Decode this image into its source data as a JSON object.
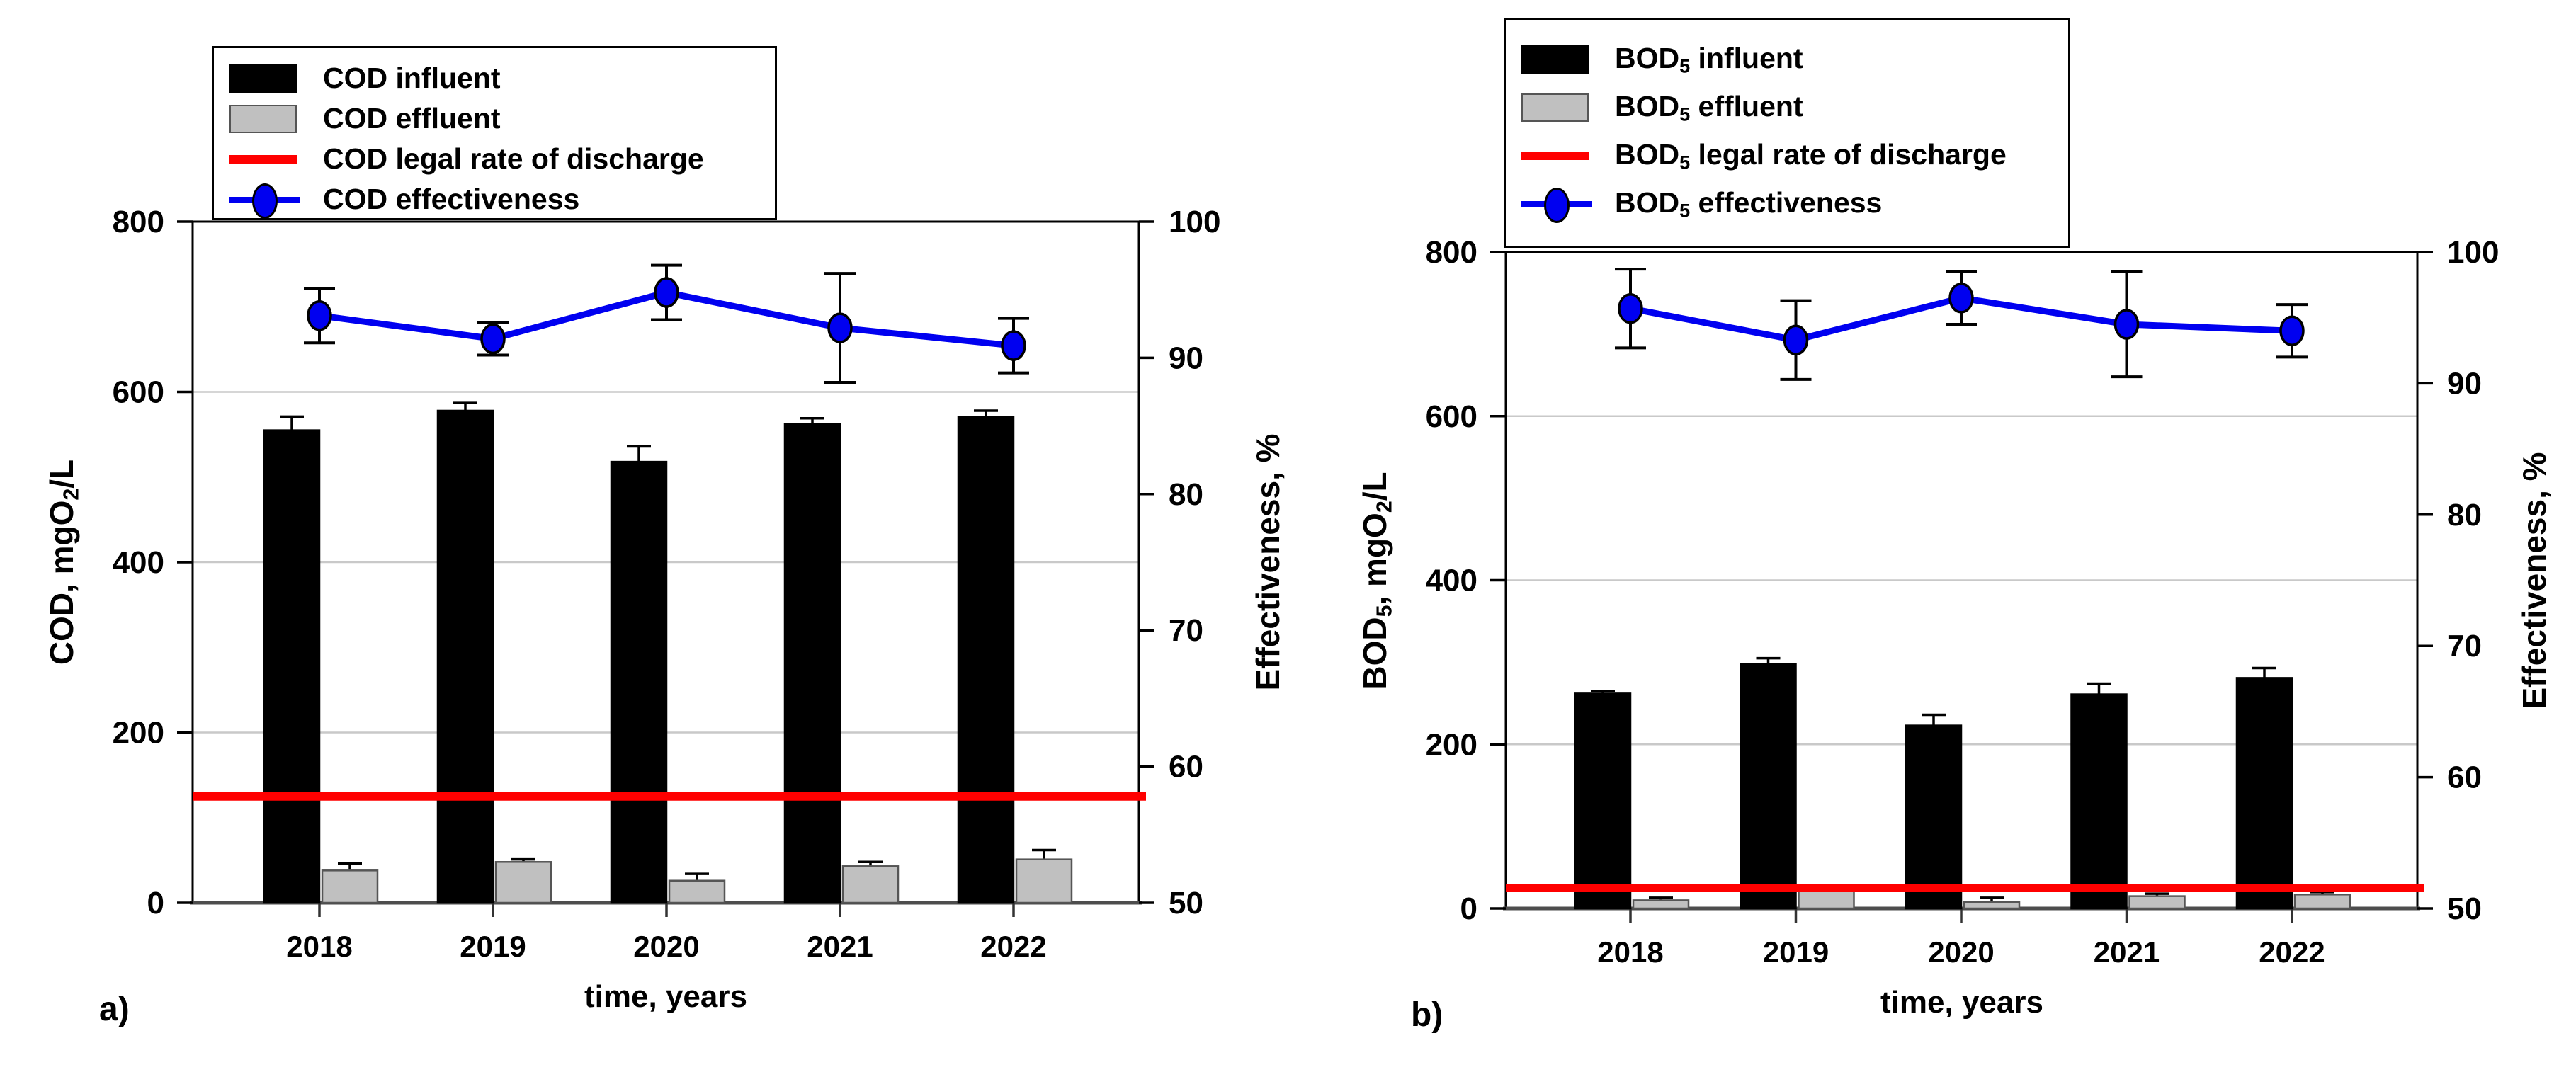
{
  "figure": {
    "background": "#ffffff",
    "colors": {
      "influent_bar": "#000000",
      "effluent_bar": "#c0c0c0",
      "effluent_border": "#555555",
      "legal_line": "#ff0000",
      "effectiveness_line": "#0000f0",
      "gridline": "#c9c9c9",
      "frame": "#000000",
      "baseline": "#4d4d4d"
    }
  },
  "panels": [
    {
      "label": "a)"
    },
    {
      "label": "b)"
    }
  ],
  "legends": [
    {
      "rows": [
        {
          "swatch": "black-bar",
          "label": [
            {
              "t": "COD influent"
            }
          ]
        },
        {
          "swatch": "gray-bar",
          "label": [
            {
              "t": "COD effluent"
            }
          ]
        },
        {
          "swatch": "red-line",
          "label": [
            {
              "t": "COD legal rate of discharge"
            }
          ]
        },
        {
          "swatch": "blue-line-marker",
          "label": [
            {
              "t": "COD effectiveness"
            }
          ]
        }
      ]
    },
    {
      "rows": [
        {
          "swatch": "black-bar",
          "label": [
            {
              "t": "BOD"
            },
            {
              "t": "5",
              "s": true
            },
            {
              "t": " influent"
            }
          ]
        },
        {
          "swatch": "gray-bar",
          "label": [
            {
              "t": "BOD"
            },
            {
              "t": "5",
              "s": true
            },
            {
              "t": " effluent"
            }
          ]
        },
        {
          "swatch": "red-line",
          "label": [
            {
              "t": "BOD"
            },
            {
              "t": "5",
              "s": true
            },
            {
              "t": " legal rate of discharge"
            }
          ]
        },
        {
          "swatch": "blue-line-marker",
          "label": [
            {
              "t": "BOD"
            },
            {
              "t": "5",
              "s": true
            },
            {
              "t": " effectiveness"
            }
          ]
        }
      ]
    }
  ],
  "chart_data": [
    {
      "id": "cod",
      "type": "bar+line",
      "panel_label": "a)",
      "categories": [
        "2018",
        "2019",
        "2020",
        "2021",
        "2022"
      ],
      "xlabel": "time, years",
      "ylabel_left_rich": [
        {
          "t": "COD, mgO"
        },
        {
          "t": "2",
          "s": true
        },
        {
          "t": "/L"
        }
      ],
      "ylabel_right": "Effectiveness, %",
      "ylim_left": [
        0,
        800
      ],
      "yticks_left": [
        0,
        200,
        400,
        600,
        800
      ],
      "ylim_right": [
        50,
        100
      ],
      "yticks_right": [
        50,
        60,
        70,
        80,
        90,
        100
      ],
      "grid_values_left": [
        200,
        400,
        600
      ],
      "series": [
        {
          "name": "COD influent",
          "type": "bar",
          "color": "#000000",
          "values": [
            555,
            578,
            518,
            562,
            571
          ],
          "err_up": [
            16,
            9,
            18,
            7,
            7
          ]
        },
        {
          "name": "COD effluent",
          "type": "bar",
          "color": "#c0c0c0",
          "values": [
            38,
            48,
            26,
            43,
            51
          ],
          "err_up": [
            8,
            3,
            8,
            5,
            11
          ]
        },
        {
          "name": "COD legal rate of discharge",
          "type": "hline",
          "color": "#ff0000",
          "value": 125
        },
        {
          "name": "COD effectiveness",
          "type": "line",
          "axis": "right",
          "color": "#0000f0",
          "values": [
            93.1,
            91.4,
            94.8,
            92.2,
            90.9
          ],
          "err": [
            2,
            1.2,
            2,
            4,
            2
          ]
        }
      ]
    },
    {
      "id": "bod5",
      "type": "bar+line",
      "panel_label": "b)",
      "categories": [
        "2018",
        "2019",
        "2020",
        "2021",
        "2022"
      ],
      "xlabel": "time, years",
      "ylabel_left_rich": [
        {
          "t": "BOD"
        },
        {
          "t": "5",
          "s": true
        },
        {
          "t": ", mgO"
        },
        {
          "t": "2",
          "s": true
        },
        {
          "t": "/L"
        }
      ],
      "ylabel_right": "Effectiveness, %",
      "ylim_left": [
        0,
        800
      ],
      "yticks_left": [
        0,
        200,
        400,
        600,
        800
      ],
      "ylim_right": [
        50,
        100
      ],
      "yticks_right": [
        50,
        60,
        70,
        80,
        90,
        100
      ],
      "grid_values_left": [
        200,
        400,
        600
      ],
      "series": [
        {
          "name": "BOD5 influent",
          "type": "bar",
          "color": "#000000",
          "values": [
            262,
            298,
            223,
            261,
            281
          ],
          "err_up": [
            3,
            7,
            13,
            13,
            12
          ]
        },
        {
          "name": "BOD5 effluent",
          "type": "bar",
          "color": "#c0c0c0",
          "values": [
            10,
            21,
            8,
            15,
            17
          ],
          "err_up": [
            3,
            2,
            5,
            3,
            3
          ]
        },
        {
          "name": "BOD5 legal rate of discharge",
          "type": "hline",
          "color": "#ff0000",
          "value": 25
        },
        {
          "name": "BOD5 effectiveness",
          "type": "line",
          "axis": "right",
          "color": "#0000f0",
          "values": [
            95.7,
            93.3,
            96.5,
            94.5,
            94.0
          ],
          "err": [
            3,
            3,
            2,
            4,
            2
          ]
        }
      ]
    }
  ]
}
